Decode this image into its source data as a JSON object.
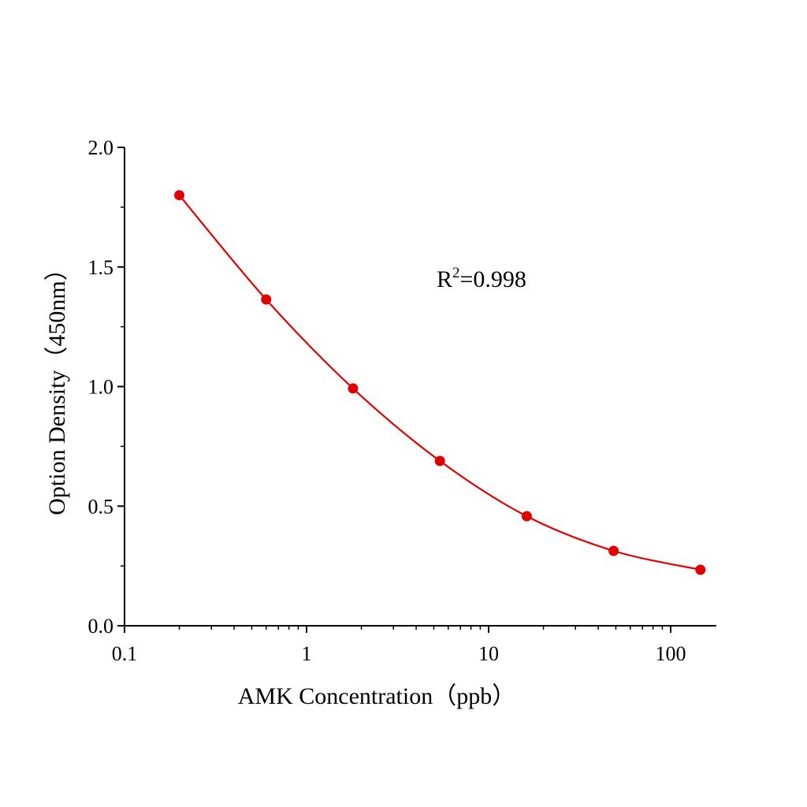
{
  "chart_data": {
    "type": "line",
    "xlabel": "AMK  Concentration（ppb）",
    "ylabel": "Option Density（450nm）",
    "x_scale": "log",
    "xlim": [
      0.1,
      178
    ],
    "ylim": [
      0.0,
      2.0
    ],
    "x_ticks": [
      0.1,
      1,
      10,
      100
    ],
    "x_tick_labels": [
      "0.1",
      "1",
      "10",
      "100"
    ],
    "y_ticks": [
      0.0,
      0.5,
      1.0,
      1.5,
      2.0
    ],
    "y_tick_labels": [
      "0.0",
      "0.5",
      "1.0",
      "1.5",
      "2.0"
    ],
    "grid": false,
    "annotation": {
      "base": "R",
      "sup": "2",
      "rest": "=0.998"
    },
    "series": [
      {
        "color": "#e00000",
        "marker": "circle",
        "x": [
          0.2,
          0.6,
          1.8,
          5.4,
          16.2,
          48.6,
          145.8
        ],
        "y": [
          1.8,
          1.364,
          0.992,
          0.689,
          0.458,
          0.313,
          0.234
        ]
      }
    ]
  }
}
